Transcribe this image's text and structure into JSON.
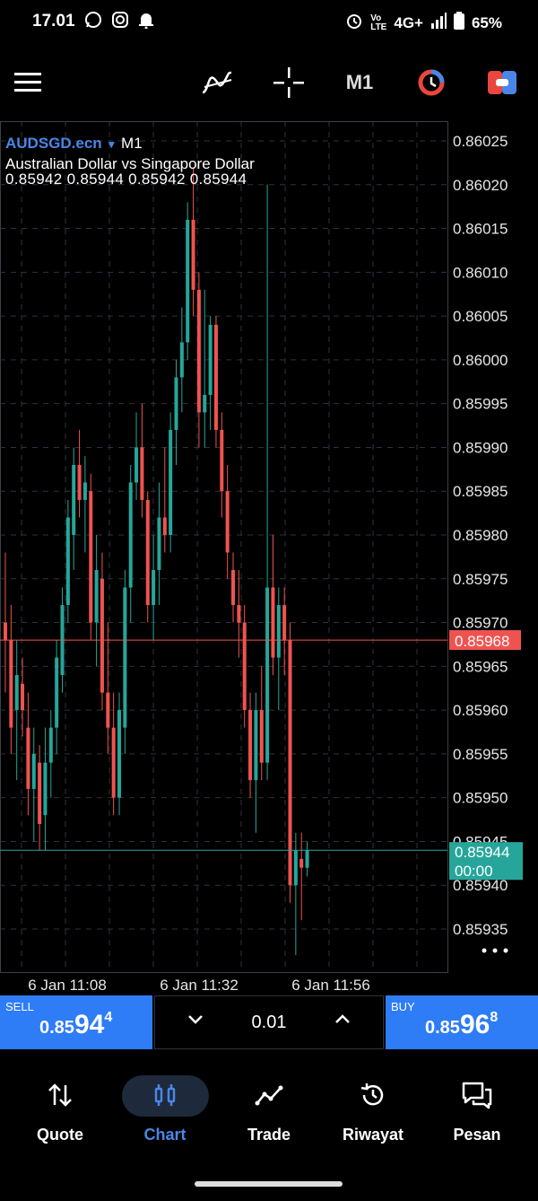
{
  "status": {
    "time": "17.01",
    "network": "4G+",
    "battery": "65%"
  },
  "toolbar": {
    "timeframe": "M1"
  },
  "chart": {
    "symbol": "AUDSGD.ecn",
    "timeframe": "M1",
    "description": "Australian Dollar vs Singapore Dollar",
    "ohlc": "0.85942 0.85944 0.85942 0.85944",
    "price_levels": [
      "0.86025",
      "0.86020",
      "0.86015",
      "0.86010",
      "0.86005",
      "0.86000",
      "0.85995",
      "0.85990",
      "0.85985",
      "0.85980",
      "0.85975",
      "0.85970",
      "0.85965",
      "0.85960",
      "0.85955",
      "0.85950",
      "0.85945",
      "0.85940",
      "0.85935"
    ],
    "time_labels": [
      "6 Jan 11:08",
      "6 Jan 11:32",
      "6 Jan 11:56"
    ],
    "ask_label": "0.85968",
    "bid_label": "0.85944",
    "bid_countdown": "00:00",
    "colors": {
      "bull": "#26a69a",
      "bear": "#ef5350",
      "ask_line": "#ef5350",
      "bid_line": "#26a69a"
    }
  },
  "chart_data": {
    "type": "candlestick",
    "ylim": [
      0.8593,
      0.86028
    ],
    "candles": [
      {
        "o": 0.8597,
        "h": 0.85978,
        "l": 0.85962,
        "c": 0.85968
      },
      {
        "o": 0.85968,
        "h": 0.85972,
        "l": 0.85955,
        "c": 0.85958
      },
      {
        "o": 0.8596,
        "h": 0.85968,
        "l": 0.85952,
        "c": 0.85964
      },
      {
        "o": 0.85963,
        "h": 0.85966,
        "l": 0.85957,
        "c": 0.8596
      },
      {
        "o": 0.85958,
        "h": 0.85962,
        "l": 0.85948,
        "c": 0.85951
      },
      {
        "o": 0.85951,
        "h": 0.85958,
        "l": 0.85945,
        "c": 0.85955
      },
      {
        "o": 0.85954,
        "h": 0.85956,
        "l": 0.85944,
        "c": 0.85947
      },
      {
        "o": 0.85948,
        "h": 0.85958,
        "l": 0.85944,
        "c": 0.85954
      },
      {
        "o": 0.85954,
        "h": 0.8596,
        "l": 0.8595,
        "c": 0.85958
      },
      {
        "o": 0.85958,
        "h": 0.85968,
        "l": 0.85955,
        "c": 0.85966
      },
      {
        "o": 0.85964,
        "h": 0.85974,
        "l": 0.85962,
        "c": 0.85972
      },
      {
        "o": 0.85972,
        "h": 0.85984,
        "l": 0.8597,
        "c": 0.85982
      },
      {
        "o": 0.8598,
        "h": 0.8599,
        "l": 0.85976,
        "c": 0.85988
      },
      {
        "o": 0.85988,
        "h": 0.85992,
        "l": 0.85982,
        "c": 0.85984
      },
      {
        "o": 0.85984,
        "h": 0.85989,
        "l": 0.85978,
        "c": 0.85986
      },
      {
        "o": 0.85985,
        "h": 0.85987,
        "l": 0.85968,
        "c": 0.8597
      },
      {
        "o": 0.8597,
        "h": 0.8598,
        "l": 0.85965,
        "c": 0.85976
      },
      {
        "o": 0.85975,
        "h": 0.85978,
        "l": 0.8596,
        "c": 0.85962
      },
      {
        "o": 0.85962,
        "h": 0.8597,
        "l": 0.85955,
        "c": 0.85958
      },
      {
        "o": 0.85958,
        "h": 0.85962,
        "l": 0.85948,
        "c": 0.8595
      },
      {
        "o": 0.8595,
        "h": 0.85962,
        "l": 0.85948,
        "c": 0.8596
      },
      {
        "o": 0.85958,
        "h": 0.85976,
        "l": 0.85955,
        "c": 0.85974
      },
      {
        "o": 0.85974,
        "h": 0.85988,
        "l": 0.8597,
        "c": 0.85986
      },
      {
        "o": 0.85986,
        "h": 0.85994,
        "l": 0.85984,
        "c": 0.8599
      },
      {
        "o": 0.8599,
        "h": 0.85995,
        "l": 0.85982,
        "c": 0.85984
      },
      {
        "o": 0.85984,
        "h": 0.85985,
        "l": 0.8597,
        "c": 0.85972
      },
      {
        "o": 0.85972,
        "h": 0.8598,
        "l": 0.85968,
        "c": 0.85976
      },
      {
        "o": 0.85976,
        "h": 0.85986,
        "l": 0.85972,
        "c": 0.85982
      },
      {
        "o": 0.85982,
        "h": 0.8599,
        "l": 0.85978,
        "c": 0.8598
      },
      {
        "o": 0.8598,
        "h": 0.85994,
        "l": 0.85978,
        "c": 0.85992
      },
      {
        "o": 0.85992,
        "h": 0.86,
        "l": 0.85988,
        "c": 0.85998
      },
      {
        "o": 0.85998,
        "h": 0.86006,
        "l": 0.85994,
        "c": 0.86002
      },
      {
        "o": 0.86002,
        "h": 0.86018,
        "l": 0.86,
        "c": 0.86016
      },
      {
        "o": 0.86016,
        "h": 0.86022,
        "l": 0.86005,
        "c": 0.86008
      },
      {
        "o": 0.86008,
        "h": 0.8601,
        "l": 0.8599,
        "c": 0.85994
      },
      {
        "o": 0.85994,
        "h": 0.86008,
        "l": 0.8599,
        "c": 0.85996
      },
      {
        "o": 0.85996,
        "h": 0.86005,
        "l": 0.85992,
        "c": 0.86004
      },
      {
        "o": 0.86004,
        "h": 0.86005,
        "l": 0.8599,
        "c": 0.85992
      },
      {
        "o": 0.85992,
        "h": 0.85994,
        "l": 0.85982,
        "c": 0.85985
      },
      {
        "o": 0.85985,
        "h": 0.85988,
        "l": 0.85975,
        "c": 0.85978
      },
      {
        "o": 0.85976,
        "h": 0.85978,
        "l": 0.8597,
        "c": 0.85972
      },
      {
        "o": 0.85972,
        "h": 0.85976,
        "l": 0.85966,
        "c": 0.8597
      },
      {
        "o": 0.8597,
        "h": 0.85972,
        "l": 0.85958,
        "c": 0.8596
      },
      {
        "o": 0.8596,
        "h": 0.85962,
        "l": 0.8595,
        "c": 0.85952
      },
      {
        "o": 0.85952,
        "h": 0.85962,
        "l": 0.85946,
        "c": 0.8596
      },
      {
        "o": 0.8596,
        "h": 0.85965,
        "l": 0.85952,
        "c": 0.85954
      },
      {
        "o": 0.85954,
        "h": 0.8602,
        "l": 0.85952,
        "c": 0.85974
      },
      {
        "o": 0.85974,
        "h": 0.8598,
        "l": 0.85964,
        "c": 0.85966
      },
      {
        "o": 0.85966,
        "h": 0.85974,
        "l": 0.8596,
        "c": 0.85972
      },
      {
        "o": 0.85972,
        "h": 0.85974,
        "l": 0.85964,
        "c": 0.85968
      },
      {
        "o": 0.85968,
        "h": 0.8597,
        "l": 0.85938,
        "c": 0.8594
      },
      {
        "o": 0.8594,
        "h": 0.85946,
        "l": 0.85932,
        "c": 0.85944
      },
      {
        "o": 0.85943,
        "h": 0.85946,
        "l": 0.85936,
        "c": 0.85942
      },
      {
        "o": 0.85942,
        "h": 0.85945,
        "l": 0.85941,
        "c": 0.85944
      }
    ]
  },
  "trade": {
    "sell_label": "SELL",
    "sell_a": "0.85",
    "sell_b": "94",
    "sell_c": "4",
    "buy_label": "BUY",
    "buy_a": "0.85",
    "buy_b": "96",
    "buy_c": "8",
    "lot": "0.01"
  },
  "nav": [
    {
      "label": "Quote",
      "icon": "quote-arrows-icon"
    },
    {
      "label": "Chart",
      "icon": "chart-candles-icon"
    },
    {
      "label": "Trade",
      "icon": "trade-line-icon"
    },
    {
      "label": "Riwayat",
      "icon": "history-icon"
    },
    {
      "label": "Pesan",
      "icon": "messages-icon"
    }
  ]
}
